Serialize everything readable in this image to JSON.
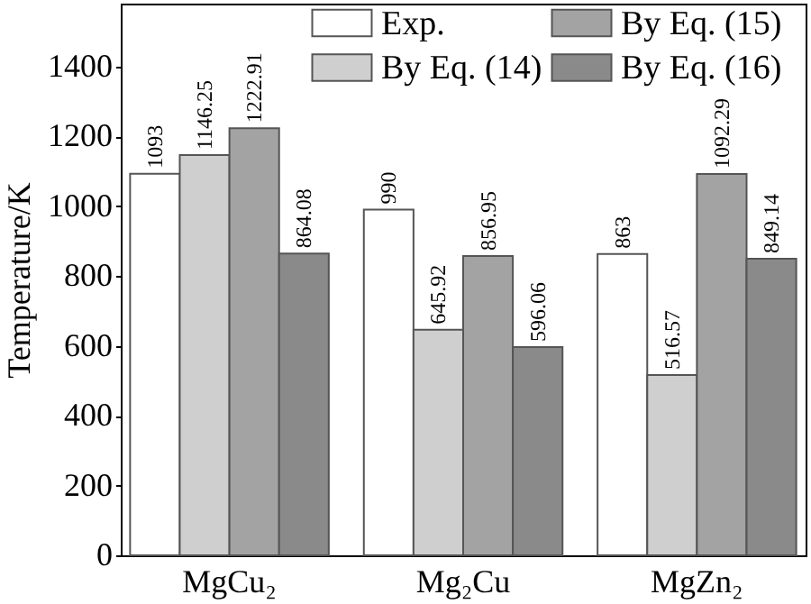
{
  "chart_data": {
    "type": "bar",
    "ylabel": "Temperature/K",
    "categories": [
      "MgCu₂",
      "Mg₂Cu",
      "MgZn₂"
    ],
    "series": [
      {
        "name": "Exp.",
        "color": "#ffffff",
        "values": [
          1093,
          990,
          863
        ]
      },
      {
        "name": "By Eq. (14)",
        "color": "#cfcfcf",
        "values": [
          1146.25,
          645.92,
          516.57
        ]
      },
      {
        "name": "By Eq. (15)",
        "color": "#a3a3a3",
        "values": [
          1222.91,
          856.95,
          1092.29
        ]
      },
      {
        "name": "By Eq. (16)",
        "color": "#8a8a8a",
        "values": [
          864.08,
          596.06,
          849.14
        ]
      }
    ],
    "ylim": [
      0,
      1580
    ],
    "yticks": [
      0,
      200,
      400,
      600,
      800,
      1000,
      1200,
      1400
    ],
    "data_labels": true,
    "legend": "top right",
    "grid": false
  }
}
